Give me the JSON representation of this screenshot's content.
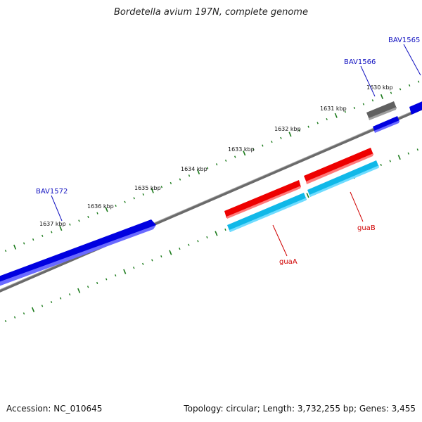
{
  "title": "Bordetella avium 197N, complete genome",
  "accession": "Accession: NC_010645",
  "summary": "Topology: circular; Length: 3,732,255 bp; Genes: 3,455",
  "colors": {
    "backbone": "#808080",
    "tick": "#1a7a1a",
    "gene_blue": "#0000e0",
    "gene_red": "#ee0000",
    "gene_cyan": "#10b8e8",
    "gene_gray": "#606060",
    "label_blue": "#1010c0",
    "label_red": "#d00000"
  },
  "kbp_ticks": [
    {
      "label": "1630 kbp"
    },
    {
      "label": "1631 kbp"
    },
    {
      "label": "1632 kbp"
    },
    {
      "label": "1633 kbp"
    },
    {
      "label": "1634 kbp"
    },
    {
      "label": "1635 kbp"
    },
    {
      "label": "1636 kbp"
    },
    {
      "label": "1637 kbp"
    }
  ],
  "gene_labels": [
    {
      "text": "BAV1565",
      "color": "blue"
    },
    {
      "text": "BAV1566",
      "color": "blue"
    },
    {
      "text": "BAV1572",
      "color": "blue"
    },
    {
      "text": "guaA",
      "color": "red"
    },
    {
      "text": "guaB",
      "color": "red"
    }
  ]
}
